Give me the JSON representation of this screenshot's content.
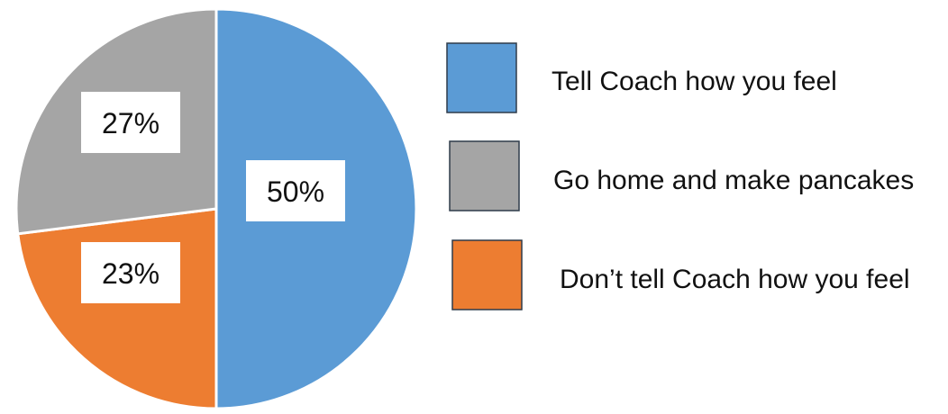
{
  "chart_data": {
    "type": "pie",
    "title": "",
    "start_angle_deg": 0,
    "direction": "clockwise",
    "slice_border_color": "#ffffff",
    "legend_position": "right",
    "slices": [
      {
        "label": "Tell Coach how you feel",
        "value": 50,
        "value_label": "50%",
        "color": "#5B9BD5"
      },
      {
        "label": "Don’t tell Coach how you feel",
        "value": 23,
        "value_label": "23%",
        "color": "#ED7D31"
      },
      {
        "label": "Go home and make pancakes",
        "value": 27,
        "value_label": "27%",
        "color": "#A5A5A5"
      }
    ],
    "legend": [
      {
        "label": "Tell Coach how you feel",
        "color": "#5B9BD5"
      },
      {
        "label": "Go home and make pancakes",
        "color": "#A5A5A5"
      },
      {
        "label": "Don’t tell Coach how you feel",
        "color": "#ED7D31"
      }
    ],
    "legend_swatch_border": "#2F3B4A"
  }
}
